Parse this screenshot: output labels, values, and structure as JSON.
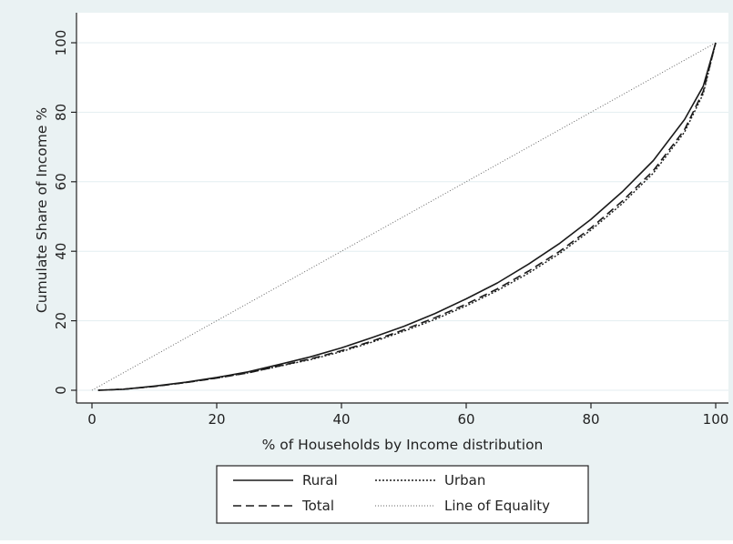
{
  "chart_data": {
    "type": "line",
    "title": "",
    "xlabel": "% of Households by Income distribution",
    "ylabel": "Cumulate Share of Income %",
    "xlim": [
      0,
      100
    ],
    "ylim": [
      0,
      100
    ],
    "xticks": [
      0,
      20,
      40,
      60,
      80,
      100
    ],
    "yticks": [
      0,
      20,
      40,
      60,
      80,
      100
    ],
    "grid": true,
    "legend_position": "bottom",
    "colors": {
      "background": "#eaf2f3",
      "plot": "#ffffff",
      "grid": "#e3eef0",
      "line": "#1a1a1a"
    },
    "series": [
      {
        "name": "Rural",
        "style": "solid",
        "x": [
          1,
          5,
          10,
          15,
          20,
          25,
          30,
          35,
          40,
          45,
          50,
          55,
          60,
          65,
          70,
          75,
          80,
          85,
          90,
          95,
          98,
          100
        ],
        "y": [
          0,
          0.3,
          1.2,
          2.3,
          3.7,
          5.3,
          7.4,
          9.6,
          12.2,
          15.2,
          18.4,
          22.1,
          26.3,
          30.9,
          36.3,
          42.3,
          49.2,
          57.1,
          66.1,
          77.9,
          87.5,
          100
        ]
      },
      {
        "name": "Urban",
        "style": "dotted",
        "x": [
          1,
          5,
          10,
          15,
          20,
          25,
          30,
          35,
          40,
          45,
          50,
          55,
          60,
          65,
          70,
          75,
          80,
          85,
          90,
          95,
          98,
          100
        ],
        "y": [
          0,
          0.3,
          1.1,
          2.2,
          3.5,
          5.0,
          6.9,
          8.8,
          11.1,
          13.9,
          17.0,
          20.4,
          24.3,
          28.7,
          33.7,
          39.4,
          46.1,
          53.7,
          62.5,
          74.3,
          85.3,
          100
        ]
      },
      {
        "name": "Total",
        "style": "dashed",
        "x": [
          1,
          5,
          10,
          15,
          20,
          25,
          30,
          35,
          40,
          45,
          50,
          55,
          60,
          65,
          70,
          75,
          80,
          85,
          90,
          95,
          98,
          100
        ],
        "y": [
          0,
          0.3,
          1.1,
          2.2,
          3.5,
          5.0,
          7.0,
          9.0,
          11.4,
          14.2,
          17.4,
          20.9,
          24.8,
          29.2,
          34.3,
          40.0,
          46.7,
          54.4,
          63.2,
          75.0,
          86.0,
          100
        ]
      },
      {
        "name": "Line of Equality",
        "style": "dotted-fine",
        "x": [
          0,
          100
        ],
        "y": [
          0,
          100
        ]
      }
    ]
  }
}
